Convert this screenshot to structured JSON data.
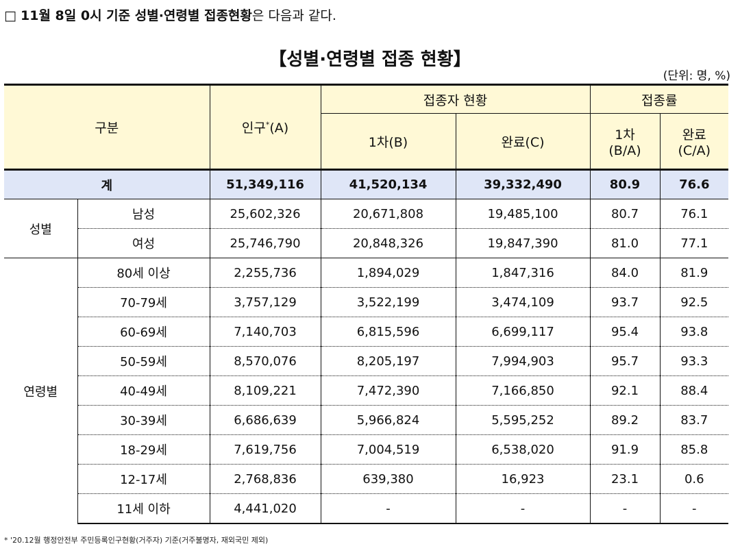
{
  "intro": {
    "bullet": "□",
    "bold": "11월 8일 0시 기준 성별·연령별 접종현황",
    "rest": "은 다음과 같다."
  },
  "title": "【성별·연령별 접종 현황】",
  "unit": "(단위: 명, %)",
  "header": {
    "category": "구분",
    "population": "인구",
    "population_star": "*",
    "population_code": "(A)",
    "vaccinated": "접종자 현황",
    "rate": "접종률",
    "first": "1차(B)",
    "complete": "완료(C)",
    "first_rate_line1": "1차",
    "first_rate_line2": "(B/A)",
    "complete_rate_line1": "완료",
    "complete_rate_line2": "(C/A)"
  },
  "total": {
    "label": "계",
    "population": "51,349,116",
    "first": "41,520,134",
    "complete": "39,332,490",
    "first_rate": "80.9",
    "complete_rate": "76.6"
  },
  "gender": {
    "group": "성별",
    "rows": [
      {
        "label": "남성",
        "population": "25,602,326",
        "first": "20,671,808",
        "complete": "19,485,100",
        "first_rate": "80.7",
        "complete_rate": "76.1"
      },
      {
        "label": "여성",
        "population": "25,746,790",
        "first": "20,848,326",
        "complete": "19,847,390",
        "first_rate": "81.0",
        "complete_rate": "77.1"
      }
    ]
  },
  "age": {
    "group": "연령별",
    "rows": [
      {
        "label": "80세 이상",
        "population": "2,255,736",
        "first": "1,894,029",
        "complete": "1,847,316",
        "first_rate": "84.0",
        "complete_rate": "81.9"
      },
      {
        "label": "70-79세",
        "population": "3,757,129",
        "first": "3,522,199",
        "complete": "3,474,109",
        "first_rate": "93.7",
        "complete_rate": "92.5"
      },
      {
        "label": "60-69세",
        "population": "7,140,703",
        "first": "6,815,596",
        "complete": "6,699,117",
        "first_rate": "95.4",
        "complete_rate": "93.8"
      },
      {
        "label": "50-59세",
        "population": "8,570,076",
        "first": "8,205,197",
        "complete": "7,994,903",
        "first_rate": "95.7",
        "complete_rate": "93.3"
      },
      {
        "label": "40-49세",
        "population": "8,109,221",
        "first": "7,472,390",
        "complete": "7,166,850",
        "first_rate": "92.1",
        "complete_rate": "88.4"
      },
      {
        "label": "30-39세",
        "population": "6,686,639",
        "first": "5,966,824",
        "complete": "5,595,252",
        "first_rate": "89.2",
        "complete_rate": "83.7"
      },
      {
        "label": "18-29세",
        "population": "7,619,756",
        "first": "7,004,519",
        "complete": "6,538,020",
        "first_rate": "91.9",
        "complete_rate": "85.8"
      },
      {
        "label": "12-17세",
        "population": "2,768,836",
        "first": "639,380",
        "complete": "16,923",
        "first_rate": "23.1",
        "complete_rate": "0.6"
      },
      {
        "label": "11세 이하",
        "population": "4,441,020",
        "first": "-",
        "complete": "-",
        "first_rate": "-",
        "complete_rate": "-"
      }
    ]
  },
  "footnote": "* '20.12월 행정안전부 주민등록인구현황(거주자) 기준(거주불명자, 재외국민 제외)"
}
